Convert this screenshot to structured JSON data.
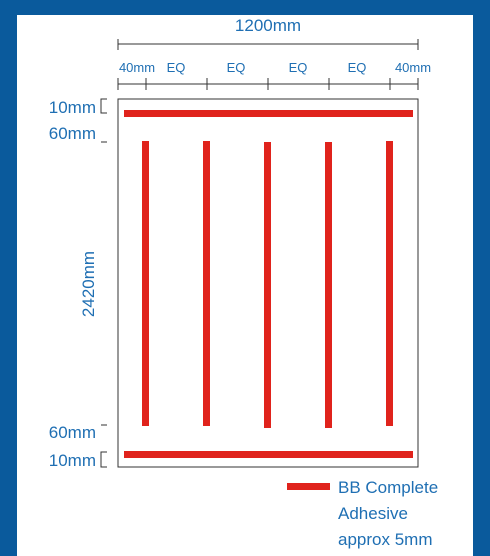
{
  "diagram": {
    "width_label": "1200mm",
    "height_label": "2420mm",
    "spacing_labels": [
      "40mm",
      "EQ",
      "EQ",
      "EQ",
      "EQ",
      "40mm"
    ],
    "top_offset_label": "10mm",
    "top_gap_label": "60mm",
    "bottom_gap_label": "60mm",
    "bottom_offset_label": "10mm",
    "vertical_strip_count": 5
  },
  "legend": {
    "line1": "BB Complete",
    "line2": "Adhesive",
    "line3": "approx 5mm"
  },
  "colors": {
    "background": "#0a5a9c",
    "panel": "#ffffff",
    "adhesive": "#e0231c",
    "label": "#1f6fb3",
    "outline": "#333333"
  }
}
